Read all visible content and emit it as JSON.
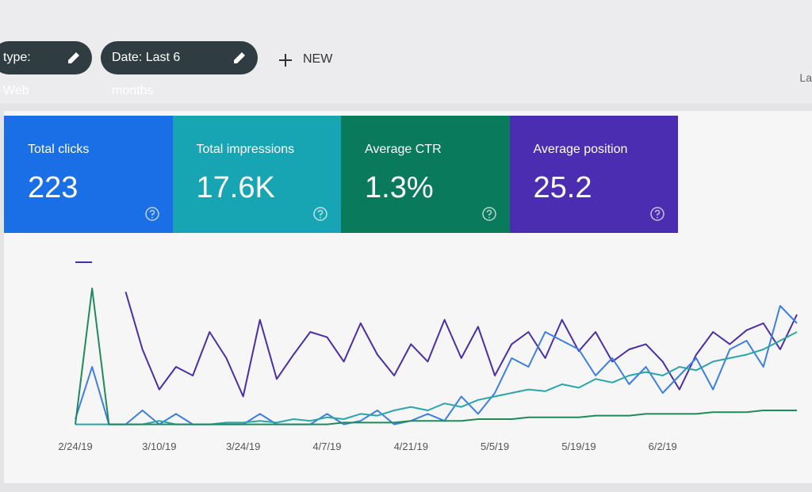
{
  "header": {
    "chips": [
      "type: Web",
      "Date: Last 6 months"
    ],
    "new_button": "NEW",
    "cut_text": "La"
  },
  "cards": [
    {
      "label": "Total clicks",
      "value": "223",
      "color": "#1a6ee6"
    },
    {
      "label": "Total impressions",
      "value": "17.6K",
      "color": "#17a5b4"
    },
    {
      "label": "Average CTR",
      "value": "1.3%",
      "color": "#0a7a5c"
    },
    {
      "label": "Average position",
      "value": "25.2",
      "color": "#4b2db2"
    }
  ],
  "chart_data": {
    "type": "line",
    "categories": [
      "2/24/19",
      null,
      null,
      null,
      null,
      "3/10/19",
      null,
      null,
      null,
      null,
      "3/24/19",
      null,
      null,
      null,
      null,
      "4/7/19",
      null,
      null,
      null,
      null,
      "4/21/19",
      null,
      null,
      null,
      null,
      "5/5/19",
      null,
      null,
      null,
      null,
      "5/19/19",
      null,
      null,
      null,
      null,
      "6/2/19",
      null,
      null,
      null,
      null,
      null,
      null,
      null,
      null
    ],
    "ylim": [
      0,
      100
    ],
    "series": [
      {
        "color": "#4a2fa8",
        "values": [
          95,
          95,
          null,
          78,
          45,
          22,
          35,
          30,
          55,
          40,
          18,
          62,
          28,
          42,
          55,
          52,
          38,
          60,
          42,
          30,
          48,
          38,
          62,
          40,
          58,
          30,
          48,
          55,
          40,
          62,
          44,
          55,
          38,
          45,
          48,
          38,
          22,
          42,
          55,
          48,
          56,
          60,
          45,
          65
        ]
      },
      {
        "color": "#3d7fe0",
        "values": [
          5,
          35,
          2,
          2,
          10,
          2,
          8,
          2,
          2,
          2,
          2,
          8,
          2,
          2,
          2,
          8,
          2,
          4,
          10,
          2,
          4,
          8,
          4,
          18,
          8,
          20,
          40,
          35,
          55,
          50,
          45,
          30,
          40,
          25,
          35,
          20,
          30,
          40,
          22,
          45,
          50,
          35,
          70,
          60
        ]
      },
      {
        "color": "#2aa6a8",
        "values": [
          2,
          2,
          2,
          2,
          2,
          4,
          2,
          2,
          2,
          3,
          3,
          4,
          3,
          5,
          4,
          6,
          5,
          8,
          7,
          10,
          12,
          10,
          14,
          12,
          16,
          18,
          20,
          22,
          21,
          25,
          23,
          28,
          26,
          30,
          32,
          30,
          35,
          33,
          38,
          40,
          42,
          45,
          50,
          55
        ]
      },
      {
        "color": "#1f8a5a",
        "values": [
          2,
          80,
          2,
          2,
          2,
          2,
          2,
          2,
          2,
          2,
          2,
          2,
          2,
          2,
          2,
          2,
          3,
          3,
          3,
          3,
          4,
          4,
          4,
          4,
          5,
          5,
          5,
          6,
          6,
          6,
          6,
          7,
          7,
          7,
          8,
          8,
          8,
          8,
          9,
          9,
          9,
          10,
          10,
          10
        ]
      }
    ]
  }
}
